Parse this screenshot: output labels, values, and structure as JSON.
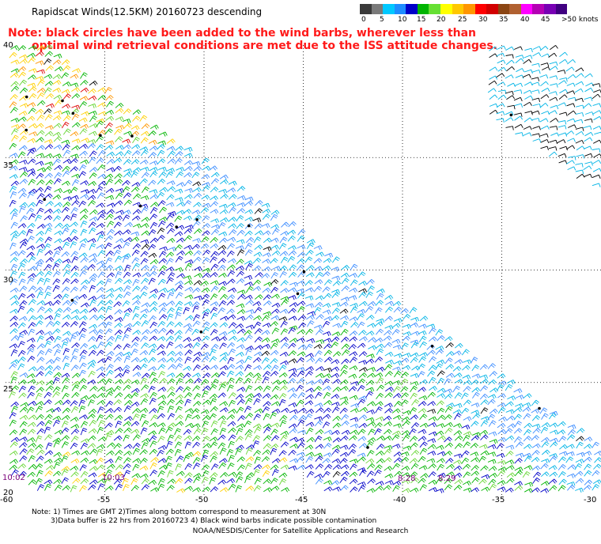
{
  "title": "Rapidscat Winds(12.5KM) 20160723 descending",
  "colorbar": {
    "labels": [
      "0",
      "5",
      "10",
      "15",
      "20",
      "25",
      "30",
      "35",
      "40",
      "45",
      ">50 knots"
    ],
    "colors": [
      "#3a3a3a",
      "#7a7a7a",
      "#00c8ff",
      "#1e8cff",
      "#0000c8",
      "#00b400",
      "#66e033",
      "#ffff00",
      "#ffc800",
      "#ff9600",
      "#ff0000",
      "#d20000",
      "#8b4513",
      "#b06030",
      "#ff00ff",
      "#b400b4",
      "#7800b4",
      "#400080"
    ]
  },
  "note": {
    "line1": "Note: black circles have been added to the wind barbs, wherever less than",
    "line2": "optimal wind retrieval conditions are met due to the ISS attitude changes."
  },
  "map": {
    "lon_min": -60,
    "lon_max": -30,
    "lat_min": 20,
    "lat_max": 40,
    "lat_labels": [
      "40",
      "35",
      "30",
      "25",
      "20"
    ],
    "lon_labels": [
      "-60",
      "-55",
      "-50",
      "-45",
      "-40",
      "-35",
      "-30"
    ],
    "time_labels": [
      "10:02",
      "10:03",
      "8:28",
      "8:29"
    ],
    "gridline_color": "#000000"
  },
  "footnote": {
    "line1": "Note: 1) Times are GMT 2)Times along bottom correspond to measurement at 30N",
    "line2": "3)Data buffer is 22 hrs from 20160723 4) Black wind barbs indicate possible contamination"
  },
  "credit": "NOAA/NESDIS/Center for Satellite Applications and Research"
}
